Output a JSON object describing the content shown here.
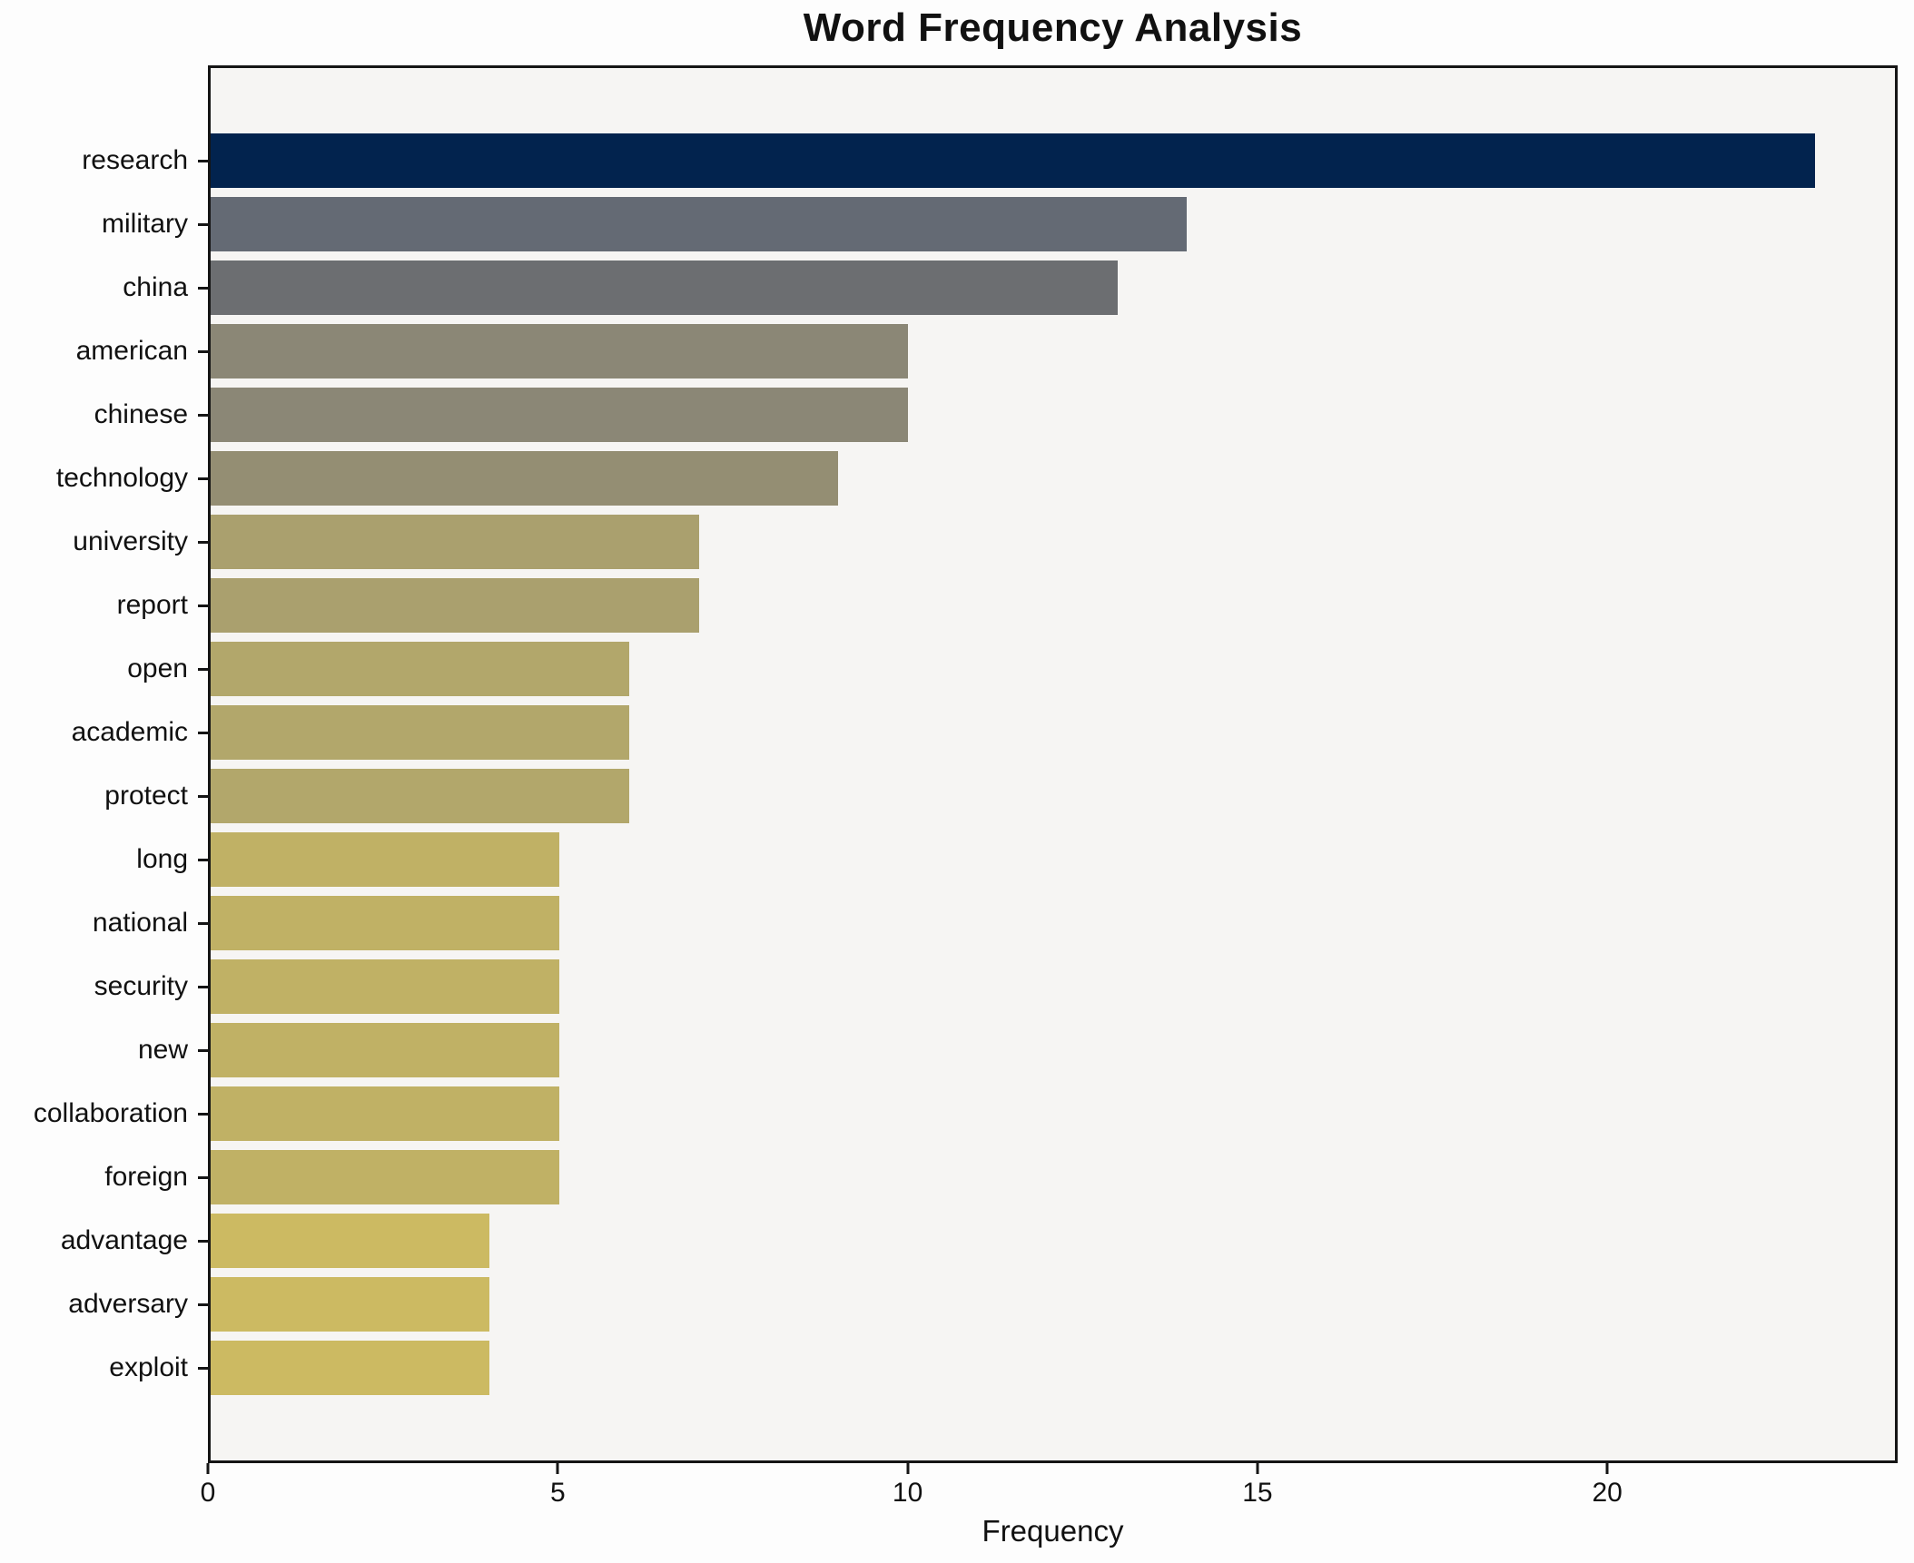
{
  "title": "Word Frequency Analysis",
  "chart_data": {
    "type": "bar",
    "orientation": "horizontal",
    "title": "Word Frequency Analysis",
    "xlabel": "Frequency",
    "ylabel": "",
    "categories": [
      "research",
      "military",
      "china",
      "american",
      "chinese",
      "technology",
      "university",
      "report",
      "open",
      "academic",
      "protect",
      "long",
      "national",
      "security",
      "new",
      "collaboration",
      "foreign",
      "advantage",
      "adversary",
      "exploit"
    ],
    "values": [
      23,
      14,
      13,
      10,
      10,
      9,
      7,
      7,
      6,
      6,
      6,
      5,
      5,
      5,
      5,
      5,
      5,
      4,
      4,
      4
    ],
    "bar_colors": [
      "#02234e",
      "#646a74",
      "#6c6e71",
      "#8b8776",
      "#8b8776",
      "#948e73",
      "#aaa06e",
      "#aaa06e",
      "#b2a76b",
      "#b2a76b",
      "#b2a76b",
      "#c0b165",
      "#c0b165",
      "#c0b165",
      "#c0b165",
      "#c0b165",
      "#c0b165",
      "#ccba62",
      "#ccba62",
      "#ccba62"
    ],
    "xticks": [
      0,
      5,
      10,
      15,
      20
    ],
    "xlim": [
      0,
      24.15
    ],
    "grid": false,
    "legend": "none",
    "bar_gap_fraction": 0.14,
    "plot_background": "#f6f5f3",
    "figure_background": "#fdfdfd",
    "spine_color": "#151515",
    "text_color": "#111111"
  }
}
